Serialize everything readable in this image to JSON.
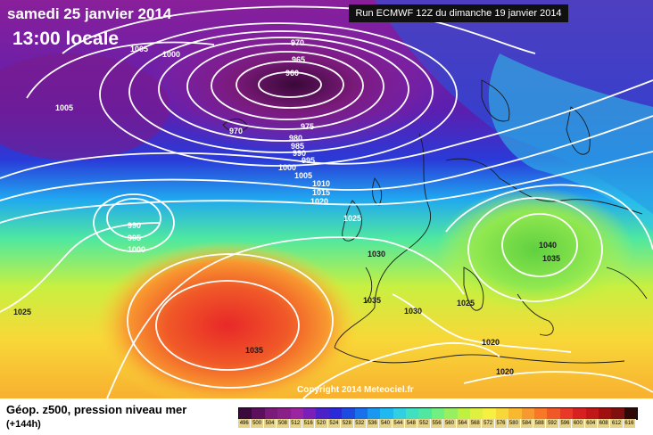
{
  "header": {
    "date": "samedi 25 janvier 2014",
    "time": "13:00 locale",
    "run": "Run ECMWF 12Z du dimanche 19 janvier 2014"
  },
  "copyright": "Copyright 2014 Meteociel.fr",
  "legend": {
    "title": "Géop. z500, pression niveau mer",
    "subtitle": "(+144h)",
    "scale_values": [
      "496",
      "500",
      "504",
      "508",
      "512",
      "516",
      "520",
      "524",
      "528",
      "532",
      "536",
      "540",
      "544",
      "548",
      "552",
      "556",
      "560",
      "564",
      "568",
      "572",
      "576",
      "580",
      "584",
      "588",
      "592",
      "596",
      "600",
      "604",
      "608",
      "612",
      "616"
    ],
    "scale_colors": [
      "#3a0a3a",
      "#5c0f5c",
      "#7a1a7a",
      "#8a1f8a",
      "#9b24a0",
      "#7a1fb8",
      "#4a22c8",
      "#2a2ad8",
      "#1e4ae0",
      "#1a70e8",
      "#1a98f0",
      "#20b8f0",
      "#30d0e0",
      "#40e0c0",
      "#50e8a0",
      "#70f080",
      "#98f060",
      "#c0f040",
      "#e0f040",
      "#f8f040",
      "#f8d838",
      "#f8b830",
      "#f89830",
      "#f87828",
      "#f05828",
      "#e83828",
      "#d82020",
      "#c01818",
      "#a01010",
      "#801010",
      "#300808"
    ]
  },
  "isobar_labels": [
    "970",
    "965",
    "960",
    "975",
    "980",
    "985",
    "990",
    "995",
    "1000",
    "1005",
    "1010",
    "1015",
    "1020",
    "1025",
    "1030",
    "1035",
    "1040",
    "1005",
    "1000",
    "1005",
    "970",
    "990",
    "995",
    "1000",
    "1025",
    "1035",
    "1030",
    "1035",
    "1025",
    "1035",
    "1020",
    "1020"
  ],
  "icons": [
    "isobar-contour-icon",
    "coastline-icon"
  ]
}
